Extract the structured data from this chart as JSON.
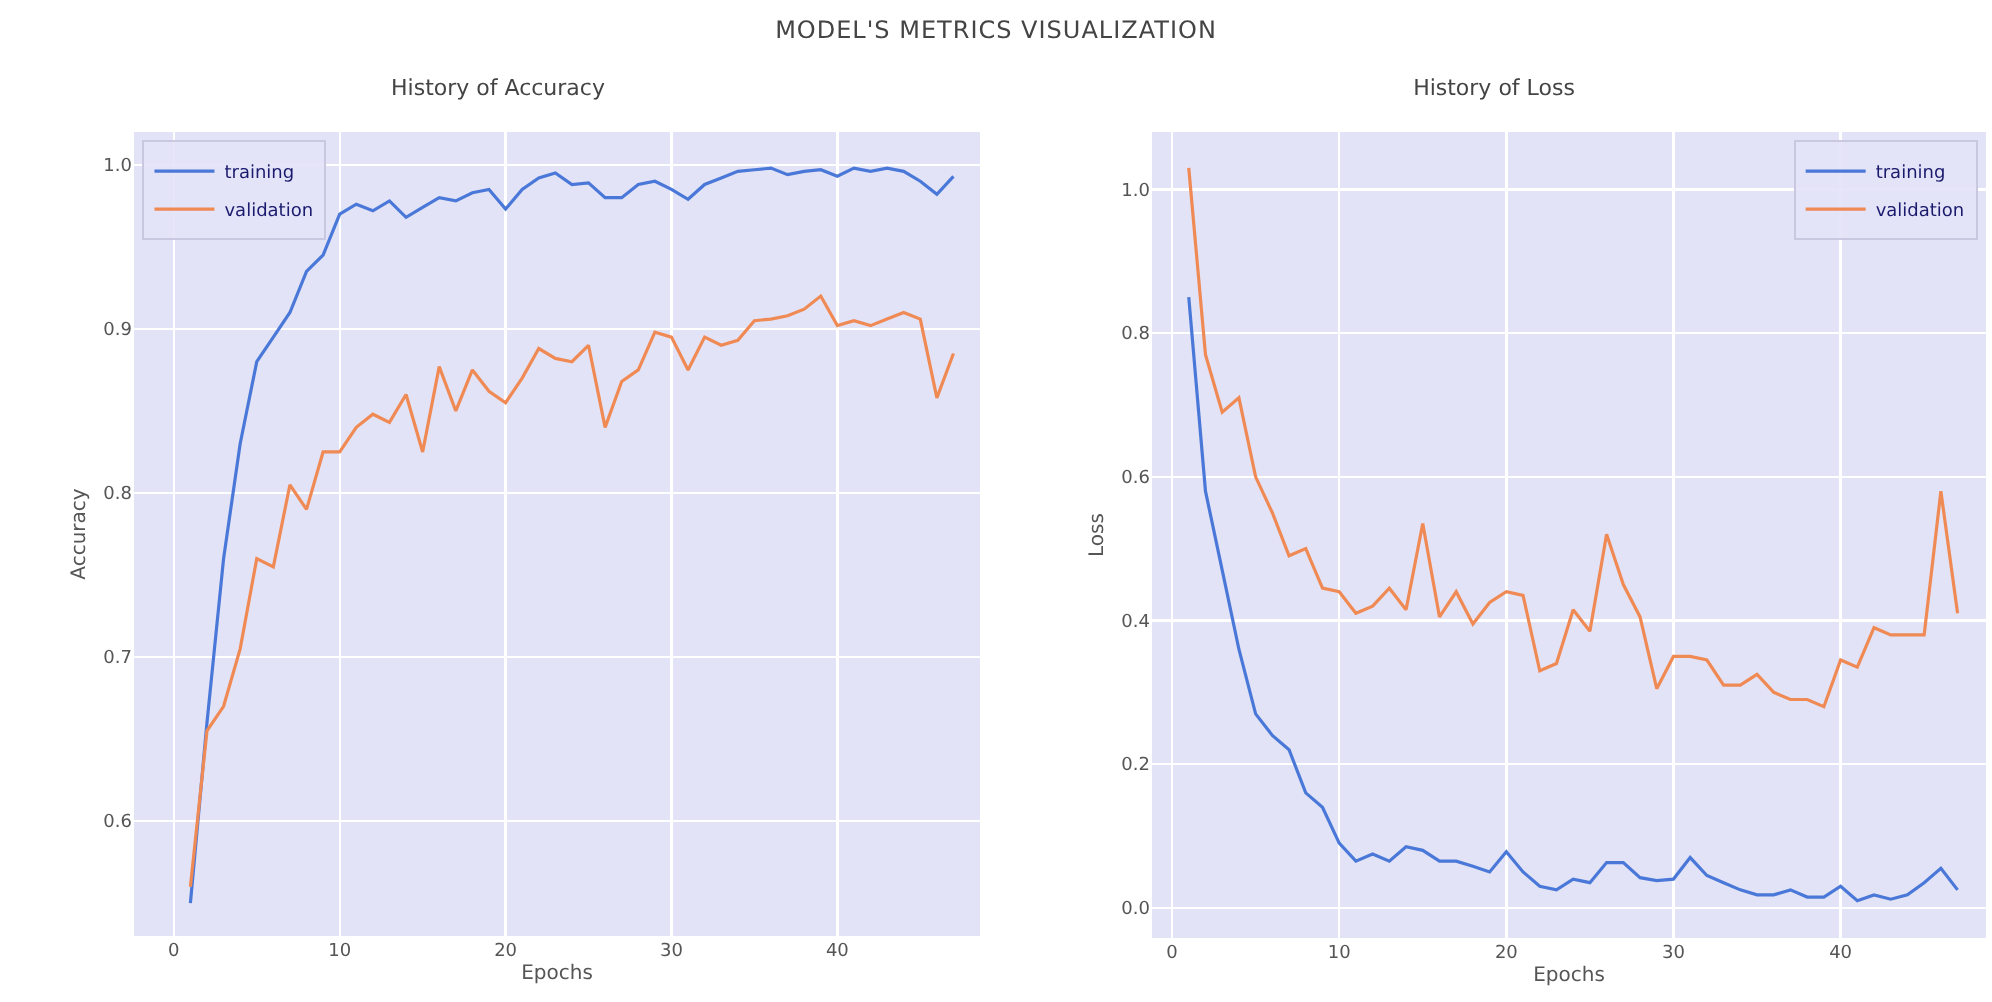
{
  "chart_data": [
    {
      "type": "line",
      "title": "History of Accuracy",
      "annotations": [
        "MODEL'S METRICS VISUALIZATION"
      ],
      "xlabel": "Epochs",
      "ylabel": "Accuracy",
      "x": [
        1,
        2,
        3,
        4,
        5,
        6,
        7,
        8,
        9,
        10,
        11,
        12,
        13,
        14,
        15,
        16,
        17,
        18,
        19,
        20,
        21,
        22,
        23,
        24,
        25,
        26,
        27,
        28,
        29,
        30,
        31,
        32,
        33,
        34,
        35,
        36,
        37,
        38,
        39,
        40,
        41,
        42,
        43,
        44,
        45,
        46,
        47
      ],
      "series": [
        {
          "name": "training",
          "color": "#4a78d8",
          "values": [
            0.55,
            0.66,
            0.76,
            0.83,
            0.88,
            0.895,
            0.91,
            0.935,
            0.945,
            0.97,
            0.976,
            0.972,
            0.978,
            0.968,
            0.974,
            0.98,
            0.978,
            0.983,
            0.985,
            0.973,
            0.985,
            0.992,
            0.995,
            0.988,
            0.989,
            0.98,
            0.98,
            0.988,
            0.99,
            0.985,
            0.979,
            0.988,
            0.992,
            0.996,
            0.997,
            0.998,
            0.994,
            0.996,
            0.997,
            0.993,
            0.998,
            0.996,
            0.998,
            0.996,
            0.99,
            0.982,
            0.993
          ]
        },
        {
          "name": "validation",
          "color": "#f08a55",
          "values": [
            0.56,
            0.655,
            0.67,
            0.705,
            0.76,
            0.755,
            0.805,
            0.79,
            0.825,
            0.825,
            0.84,
            0.848,
            0.843,
            0.86,
            0.825,
            0.877,
            0.85,
            0.875,
            0.862,
            0.855,
            0.87,
            0.888,
            0.882,
            0.88,
            0.89,
            0.84,
            0.868,
            0.875,
            0.898,
            0.895,
            0.875,
            0.895,
            0.89,
            0.893,
            0.905,
            0.906,
            0.908,
            0.912,
            0.92,
            0.902,
            0.905,
            0.902,
            0.906,
            0.91,
            0.906,
            0.858,
            0.885
          ]
        }
      ],
      "xlim": [
        -2.4,
        48.6
      ],
      "xticks": [
        0,
        10,
        20,
        30,
        40
      ],
      "ylim": [
        0.53,
        1.02
      ],
      "yticks": [
        {
          "value": 0.6,
          "label": "0.6"
        },
        {
          "value": 0.7,
          "label": "0.7"
        },
        {
          "value": 0.8,
          "label": "0.8"
        },
        {
          "value": 0.9,
          "label": "0.9"
        },
        {
          "value": 1.0,
          "label": "1.0"
        }
      ],
      "grid": true,
      "legend": "top left"
    },
    {
      "type": "line",
      "title": "History of Loss",
      "xlabel": "Epochs",
      "ylabel": "Loss",
      "x": [
        1,
        2,
        3,
        4,
        5,
        6,
        7,
        8,
        9,
        10,
        11,
        12,
        13,
        14,
        15,
        16,
        17,
        18,
        19,
        20,
        21,
        22,
        23,
        24,
        25,
        26,
        27,
        28,
        29,
        30,
        31,
        32,
        33,
        34,
        35,
        36,
        37,
        38,
        39,
        40,
        41,
        42,
        43,
        44,
        45,
        46,
        47
      ],
      "series": [
        {
          "name": "training",
          "color": "#4a78d8",
          "values": [
            0.85,
            0.58,
            0.47,
            0.36,
            0.27,
            0.24,
            0.22,
            0.16,
            0.14,
            0.09,
            0.065,
            0.075,
            0.065,
            0.085,
            0.08,
            0.065,
            0.065,
            0.058,
            0.05,
            0.078,
            0.05,
            0.03,
            0.025,
            0.04,
            0.035,
            0.063,
            0.063,
            0.042,
            0.038,
            0.04,
            0.07,
            0.045,
            0.035,
            0.025,
            0.018,
            0.018,
            0.025,
            0.015,
            0.015,
            0.03,
            0.01,
            0.018,
            0.012,
            0.018,
            0.035,
            0.055,
            0.025
          ]
        },
        {
          "name": "validation",
          "color": "#f08a55",
          "values": [
            1.03,
            0.77,
            0.69,
            0.71,
            0.6,
            0.55,
            0.49,
            0.5,
            0.445,
            0.44,
            0.41,
            0.42,
            0.445,
            0.415,
            0.535,
            0.405,
            0.44,
            0.395,
            0.425,
            0.44,
            0.435,
            0.33,
            0.34,
            0.415,
            0.385,
            0.52,
            0.45,
            0.405,
            0.305,
            0.35,
            0.35,
            0.345,
            0.31,
            0.31,
            0.325,
            0.3,
            0.29,
            0.29,
            0.28,
            0.345,
            0.335,
            0.39,
            0.38,
            0.38,
            0.38,
            0.58,
            0.41
          ]
        }
      ],
      "xlim": [
        -1.2,
        48.7
      ],
      "xticks": [
        0,
        10,
        20,
        30,
        40
      ],
      "ylim": [
        -0.042,
        1.08
      ],
      "yticks": [
        {
          "value": 0,
          "label": "0.0"
        },
        {
          "value": 0.2,
          "label": "0.2"
        },
        {
          "value": 0.4,
          "label": "0.4"
        },
        {
          "value": 0.6,
          "label": "0.6"
        },
        {
          "value": 0.8,
          "label": "0.8"
        },
        {
          "value": 1.0,
          "label": "1.0"
        }
      ],
      "grid": true,
      "legend": "top right"
    }
  ]
}
